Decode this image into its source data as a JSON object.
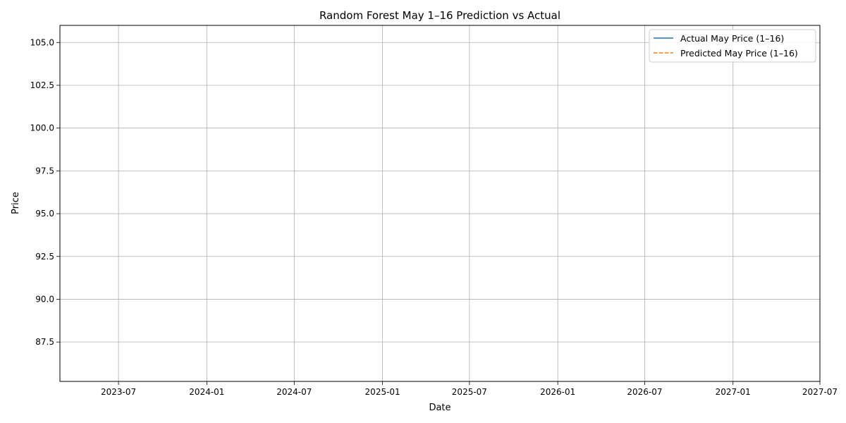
{
  "chart_data": {
    "type": "line",
    "title": "Random Forest May 1–16 Prediction vs Actual",
    "xlabel": "Date",
    "ylabel": "Price",
    "x_ticks": [
      "2023-07",
      "2024-01",
      "2024-07",
      "2025-01",
      "2025-07",
      "2026-01",
      "2026-07",
      "2027-01",
      "2027-07"
    ],
    "y_ticks": [
      "87.5",
      "90.0",
      "92.5",
      "95.0",
      "97.5",
      "100.0",
      "102.5",
      "105.0"
    ],
    "xlim": [
      "2023-03-01",
      "2027-07-01"
    ],
    "ylim": [
      85.2,
      106.0
    ],
    "grid": true,
    "legend_position": "top-right",
    "series": [
      {
        "name": "Actual May Price (1–16)",
        "color": "#1f77b4",
        "style": "solid",
        "points": []
      },
      {
        "name": "Predicted May Price (1–16)",
        "color": "#ff7f0e",
        "style": "dashed",
        "points": []
      }
    ]
  }
}
